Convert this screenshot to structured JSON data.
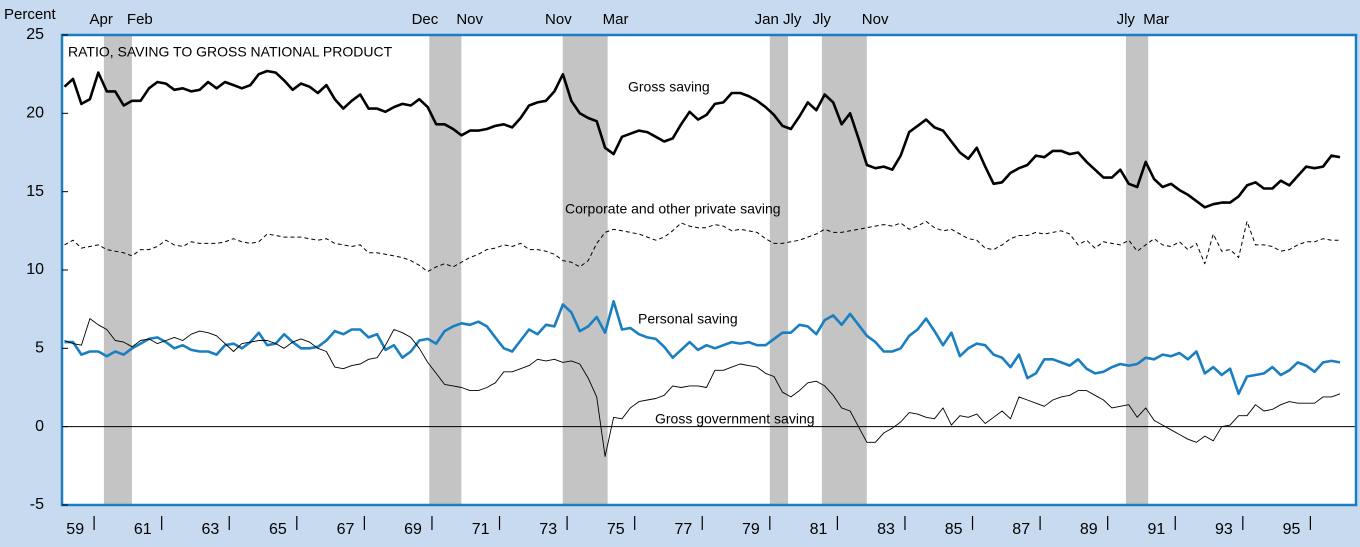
{
  "chart_data": {
    "type": "line",
    "title": "RATIO, SAVING TO GROSS NATIONAL PRODUCT",
    "y_label": "Percent",
    "xlim": [
      1959.05,
      1997.35
    ],
    "ylim": [
      -5,
      25
    ],
    "yticks": [
      -5,
      0,
      5,
      10,
      15,
      20,
      25
    ],
    "xticks": [
      {
        "value": 1959.5,
        "label": "59"
      },
      {
        "value": 1961.5,
        "label": "61"
      },
      {
        "value": 1963.5,
        "label": "63"
      },
      {
        "value": 1965.5,
        "label": "65"
      },
      {
        "value": 1967.5,
        "label": "67"
      },
      {
        "value": 1969.5,
        "label": "69"
      },
      {
        "value": 1971.5,
        "label": "71"
      },
      {
        "value": 1973.5,
        "label": "73"
      },
      {
        "value": 1975.5,
        "label": "75"
      },
      {
        "value": 1977.5,
        "label": "77"
      },
      {
        "value": 1979.5,
        "label": "79"
      },
      {
        "value": 1981.5,
        "label": "81"
      },
      {
        "value": 1983.5,
        "label": "83"
      },
      {
        "value": 1985.5,
        "label": "85"
      },
      {
        "value": 1987.5,
        "label": "87"
      },
      {
        "value": 1989.5,
        "label": "89"
      },
      {
        "value": 1991.5,
        "label": "91"
      },
      {
        "value": 1993.5,
        "label": "93"
      },
      {
        "value": 1995.5,
        "label": "95"
      }
    ],
    "xminor_ticks": [
      1960,
      1962,
      1964,
      1966,
      1968,
      1970,
      1972,
      1974,
      1976,
      1978,
      1980,
      1982,
      1984,
      1986,
      1988,
      1990,
      1992,
      1994,
      1996
    ],
    "reference_line": 0,
    "recessions": [
      {
        "start": 1960.29,
        "end": 1961.12,
        "start_label": "Apr",
        "end_label": "Feb"
      },
      {
        "start": 1969.92,
        "end": 1970.87,
        "start_label": "Dec",
        "end_label": "Nov"
      },
      {
        "start": 1973.87,
        "end": 1975.2,
        "start_label": "Nov",
        "end_label": "Mar"
      },
      {
        "start": 1980.0,
        "end": 1980.54,
        "start_label": "Jan",
        "end_label": "Jly"
      },
      {
        "start": 1981.54,
        "end": 1982.87,
        "start_label": "Jly",
        "end_label": "Nov"
      },
      {
        "start": 1990.54,
        "end": 1991.2,
        "start_label": "Jly",
        "end_label": "Mar"
      }
    ],
    "x": [
      1959.125,
      1959.375,
      1959.625,
      1959.875,
      1960.125,
      1960.375,
      1960.625,
      1960.875,
      1961.125,
      1961.375,
      1961.625,
      1961.875,
      1962.125,
      1962.375,
      1962.625,
      1962.875,
      1963.125,
      1963.375,
      1963.625,
      1963.875,
      1964.125,
      1964.375,
      1964.625,
      1964.875,
      1965.125,
      1965.375,
      1965.625,
      1965.875,
      1966.125,
      1966.375,
      1966.625,
      1966.875,
      1967.125,
      1967.375,
      1967.625,
      1967.875,
      1968.125,
      1968.375,
      1968.625,
      1968.875,
      1969.125,
      1969.375,
      1969.625,
      1969.875,
      1970.125,
      1970.375,
      1970.625,
      1970.875,
      1971.125,
      1971.375,
      1971.625,
      1971.875,
      1972.125,
      1972.375,
      1972.625,
      1972.875,
      1973.125,
      1973.375,
      1973.625,
      1973.875,
      1974.125,
      1974.375,
      1974.625,
      1974.875,
      1975.125,
      1975.375,
      1975.625,
      1975.875,
      1976.125,
      1976.375,
      1976.625,
      1976.875,
      1977.125,
      1977.375,
      1977.625,
      1977.875,
      1978.125,
      1978.375,
      1978.625,
      1978.875,
      1979.125,
      1979.375,
      1979.625,
      1979.875,
      1980.125,
      1980.375,
      1980.625,
      1980.875,
      1981.125,
      1981.375,
      1981.625,
      1981.875,
      1982.125,
      1982.375,
      1982.625,
      1982.875,
      1983.125,
      1983.375,
      1983.625,
      1983.875,
      1984.125,
      1984.375,
      1984.625,
      1984.875,
      1985.125,
      1985.375,
      1985.625,
      1985.875,
      1986.125,
      1986.375,
      1986.625,
      1986.875,
      1987.125,
      1987.375,
      1987.625,
      1987.875,
      1988.125,
      1988.375,
      1988.625,
      1988.875,
      1989.125,
      1989.375,
      1989.625,
      1989.875,
      1990.125,
      1990.375,
      1990.625,
      1990.875,
      1991.125,
      1991.375,
      1991.625,
      1991.875,
      1992.125,
      1992.375,
      1992.625,
      1992.875,
      1993.125,
      1993.375,
      1993.625,
      1993.875,
      1994.125,
      1994.375,
      1994.625,
      1994.875,
      1995.125,
      1995.375,
      1995.625,
      1995.875,
      1996.125,
      1996.375,
      1996.625,
      1996.875
    ],
    "series": [
      {
        "name": "Gross saving",
        "color": "#000000",
        "width": 2.6,
        "dash": false,
        "values": [
          21.7,
          22.2,
          20.6,
          20.9,
          22.6,
          21.4,
          21.4,
          20.5,
          20.8,
          20.8,
          21.6,
          22.0,
          21.9,
          21.5,
          21.6,
          21.4,
          21.5,
          22.0,
          21.6,
          22.0,
          21.8,
          21.6,
          21.8,
          22.5,
          22.7,
          22.6,
          22.1,
          21.5,
          21.9,
          21.7,
          21.3,
          21.8,
          20.9,
          20.3,
          20.8,
          21.2,
          20.3,
          20.3,
          20.1,
          20.4,
          20.6,
          20.5,
          20.9,
          20.4,
          19.3,
          19.3,
          19.0,
          18.6,
          18.9,
          18.9,
          19.0,
          19.2,
          19.3,
          19.1,
          19.7,
          20.5,
          20.7,
          20.8,
          21.4,
          22.5,
          20.8,
          20.0,
          19.7,
          19.5,
          17.8,
          17.4,
          18.5,
          18.7,
          18.9,
          18.8,
          18.5,
          18.2,
          18.4,
          19.3,
          20.1,
          19.6,
          19.9,
          20.6,
          20.7,
          21.3,
          21.3,
          21.1,
          20.8,
          20.4,
          19.9,
          19.2,
          19.0,
          19.8,
          20.7,
          20.2,
          21.2,
          20.7,
          19.3,
          20.0,
          18.4,
          16.7,
          16.5,
          16.6,
          16.4,
          17.3,
          18.8,
          19.2,
          19.6,
          19.1,
          18.9,
          18.2,
          17.5,
          17.1,
          17.8,
          16.6,
          15.5,
          15.6,
          16.2,
          16.5,
          16.7,
          17.3,
          17.2,
          17.6,
          17.6,
          17.4,
          17.5,
          16.9,
          16.4,
          15.9,
          15.9,
          16.4,
          15.5,
          15.3,
          16.9,
          15.8,
          15.3,
          15.5,
          15.1,
          14.8,
          14.4,
          14.0,
          14.2,
          14.3,
          14.3,
          14.7,
          15.4,
          15.6,
          15.2,
          15.2,
          15.7,
          15.4,
          16.0,
          16.6,
          16.5,
          16.6,
          17.3,
          17.2
        ]
      },
      {
        "name": "Corporate and other private saving",
        "color": "#000000",
        "width": 1,
        "dash": true,
        "values": [
          11.6,
          11.9,
          11.4,
          11.5,
          11.6,
          11.3,
          11.2,
          11.1,
          10.9,
          11.3,
          11.3,
          11.5,
          11.9,
          11.6,
          11.5,
          11.8,
          11.7,
          11.7,
          11.7,
          11.8,
          12.0,
          11.8,
          11.7,
          11.8,
          12.3,
          12.2,
          12.1,
          12.1,
          12.1,
          12.0,
          11.9,
          12.0,
          11.7,
          11.6,
          11.5,
          11.6,
          11.1,
          11.1,
          11.0,
          10.9,
          10.8,
          10.6,
          10.3,
          9.9,
          10.2,
          10.4,
          10.2,
          10.5,
          10.8,
          11.0,
          11.3,
          11.4,
          11.6,
          11.5,
          11.7,
          11.3,
          11.3,
          11.2,
          11.0,
          10.6,
          10.5,
          10.2,
          10.6,
          11.7,
          12.4,
          12.6,
          12.5,
          12.4,
          12.3,
          12.1,
          11.9,
          12.1,
          12.5,
          13.0,
          12.8,
          12.7,
          12.7,
          12.9,
          12.8,
          12.5,
          12.6,
          12.5,
          12.4,
          12.0,
          11.7,
          11.7,
          11.8,
          11.9,
          12.1,
          12.3,
          12.6,
          12.4,
          12.4,
          12.5,
          12.6,
          12.7,
          12.8,
          12.9,
          12.8,
          13.0,
          12.6,
          12.8,
          13.1,
          12.7,
          12.5,
          12.6,
          12.3,
          12.0,
          11.9,
          11.4,
          11.3,
          11.6,
          12.0,
          12.2,
          12.2,
          12.4,
          12.3,
          12.4,
          12.5,
          12.3,
          11.6,
          11.9,
          11.4,
          11.8,
          11.7,
          11.6,
          11.9,
          11.2,
          11.6,
          12.0,
          11.6,
          11.5,
          11.8,
          11.3,
          11.7,
          10.4,
          12.3,
          11.2,
          11.3,
          10.8,
          13.1,
          11.6,
          11.6,
          11.5,
          11.2,
          11.3,
          11.6,
          11.8,
          11.8,
          12.0,
          11.9,
          11.9
        ]
      },
      {
        "name": "Personal saving",
        "color": "#1a7fc1",
        "width": 2.6,
        "dash": false,
        "values": [
          5.4,
          5.4,
          4.6,
          4.8,
          4.8,
          4.5,
          4.8,
          4.6,
          5.0,
          5.3,
          5.6,
          5.7,
          5.4,
          5.0,
          5.2,
          4.9,
          4.8,
          4.8,
          4.6,
          5.2,
          5.3,
          5.0,
          5.4,
          6.0,
          5.2,
          5.3,
          5.9,
          5.4,
          5.0,
          5.0,
          5.1,
          5.5,
          6.1,
          5.9,
          6.2,
          6.2,
          5.7,
          5.9,
          4.9,
          5.2,
          4.4,
          4.8,
          5.5,
          5.6,
          5.3,
          6.1,
          6.4,
          6.6,
          6.5,
          6.7,
          6.4,
          5.7,
          5.0,
          4.8,
          5.5,
          6.2,
          5.9,
          6.5,
          6.4,
          7.8,
          7.3,
          6.1,
          6.4,
          7.0,
          6.0,
          8.0,
          6.2,
          6.3,
          5.9,
          5.7,
          5.6,
          5.1,
          4.4,
          4.9,
          5.4,
          4.9,
          5.2,
          5.0,
          5.2,
          5.4,
          5.3,
          5.4,
          5.2,
          5.2,
          5.6,
          6.0,
          6.0,
          6.5,
          6.4,
          5.9,
          6.8,
          7.1,
          6.5,
          7.2,
          6.5,
          5.8,
          5.4,
          4.8,
          4.8,
          5.0,
          5.8,
          6.2,
          6.9,
          6.1,
          5.2,
          6.0,
          4.5,
          5.0,
          5.3,
          5.2,
          4.6,
          4.4,
          3.8,
          4.6,
          3.1,
          3.4,
          4.3,
          4.3,
          4.1,
          3.9,
          4.3,
          3.7,
          3.4,
          3.5,
          3.8,
          4.0,
          3.9,
          4.0,
          4.4,
          4.3,
          4.6,
          4.5,
          4.7,
          4.3,
          4.8,
          3.4,
          3.8,
          3.3,
          3.7,
          2.1,
          3.2,
          3.3,
          3.4,
          3.8,
          3.3,
          3.6,
          4.1,
          3.9,
          3.5,
          4.1,
          4.2,
          4.1
        ]
      },
      {
        "name": "Gross government saving",
        "color": "#000000",
        "width": 0.9,
        "dash": false,
        "values": [
          5.5,
          5.3,
          5.2,
          6.9,
          6.5,
          6.2,
          5.5,
          5.4,
          5.1,
          5.5,
          5.6,
          5.3,
          5.5,
          5.7,
          5.5,
          5.9,
          6.1,
          6.0,
          5.8,
          5.3,
          4.8,
          5.3,
          5.4,
          5.5,
          5.5,
          5.3,
          5.0,
          5.4,
          5.6,
          5.4,
          5.0,
          4.8,
          3.8,
          3.7,
          3.9,
          4.0,
          4.3,
          4.4,
          5.2,
          6.2,
          6.0,
          5.7,
          5.0,
          4.1,
          3.4,
          2.7,
          2.6,
          2.5,
          2.3,
          2.3,
          2.5,
          2.8,
          3.5,
          3.5,
          3.7,
          3.9,
          4.3,
          4.2,
          4.3,
          4.1,
          4.2,
          4.0,
          3.1,
          1.9,
          -1.9,
          0.6,
          0.5,
          1.2,
          1.6,
          1.7,
          1.8,
          2.0,
          2.6,
          2.5,
          2.6,
          2.6,
          2.5,
          3.6,
          3.6,
          3.8,
          4.0,
          3.9,
          3.8,
          3.4,
          3.2,
          2.2,
          1.9,
          2.3,
          2.8,
          2.9,
          2.6,
          2.0,
          1.2,
          1.0,
          0.0,
          -1.0,
          -1.0,
          -0.4,
          -0.1,
          0.3,
          0.9,
          0.8,
          0.6,
          0.5,
          1.2,
          0.1,
          0.7,
          0.6,
          0.8,
          0.2,
          0.6,
          1.0,
          0.5,
          1.9,
          1.7,
          1.5,
          1.3,
          1.7,
          1.9,
          2.0,
          2.3,
          2.3,
          2.0,
          1.7,
          1.2,
          1.3,
          1.4,
          0.6,
          1.2,
          0.4,
          0.1,
          -0.2,
          -0.5,
          -0.8,
          -1.0,
          -0.6,
          -0.9,
          0.0,
          0.1,
          0.7,
          0.7,
          1.4,
          1.0,
          1.1,
          1.4,
          1.6,
          1.5,
          1.5,
          1.5,
          1.9,
          1.9,
          2.1
        ]
      }
    ]
  }
}
